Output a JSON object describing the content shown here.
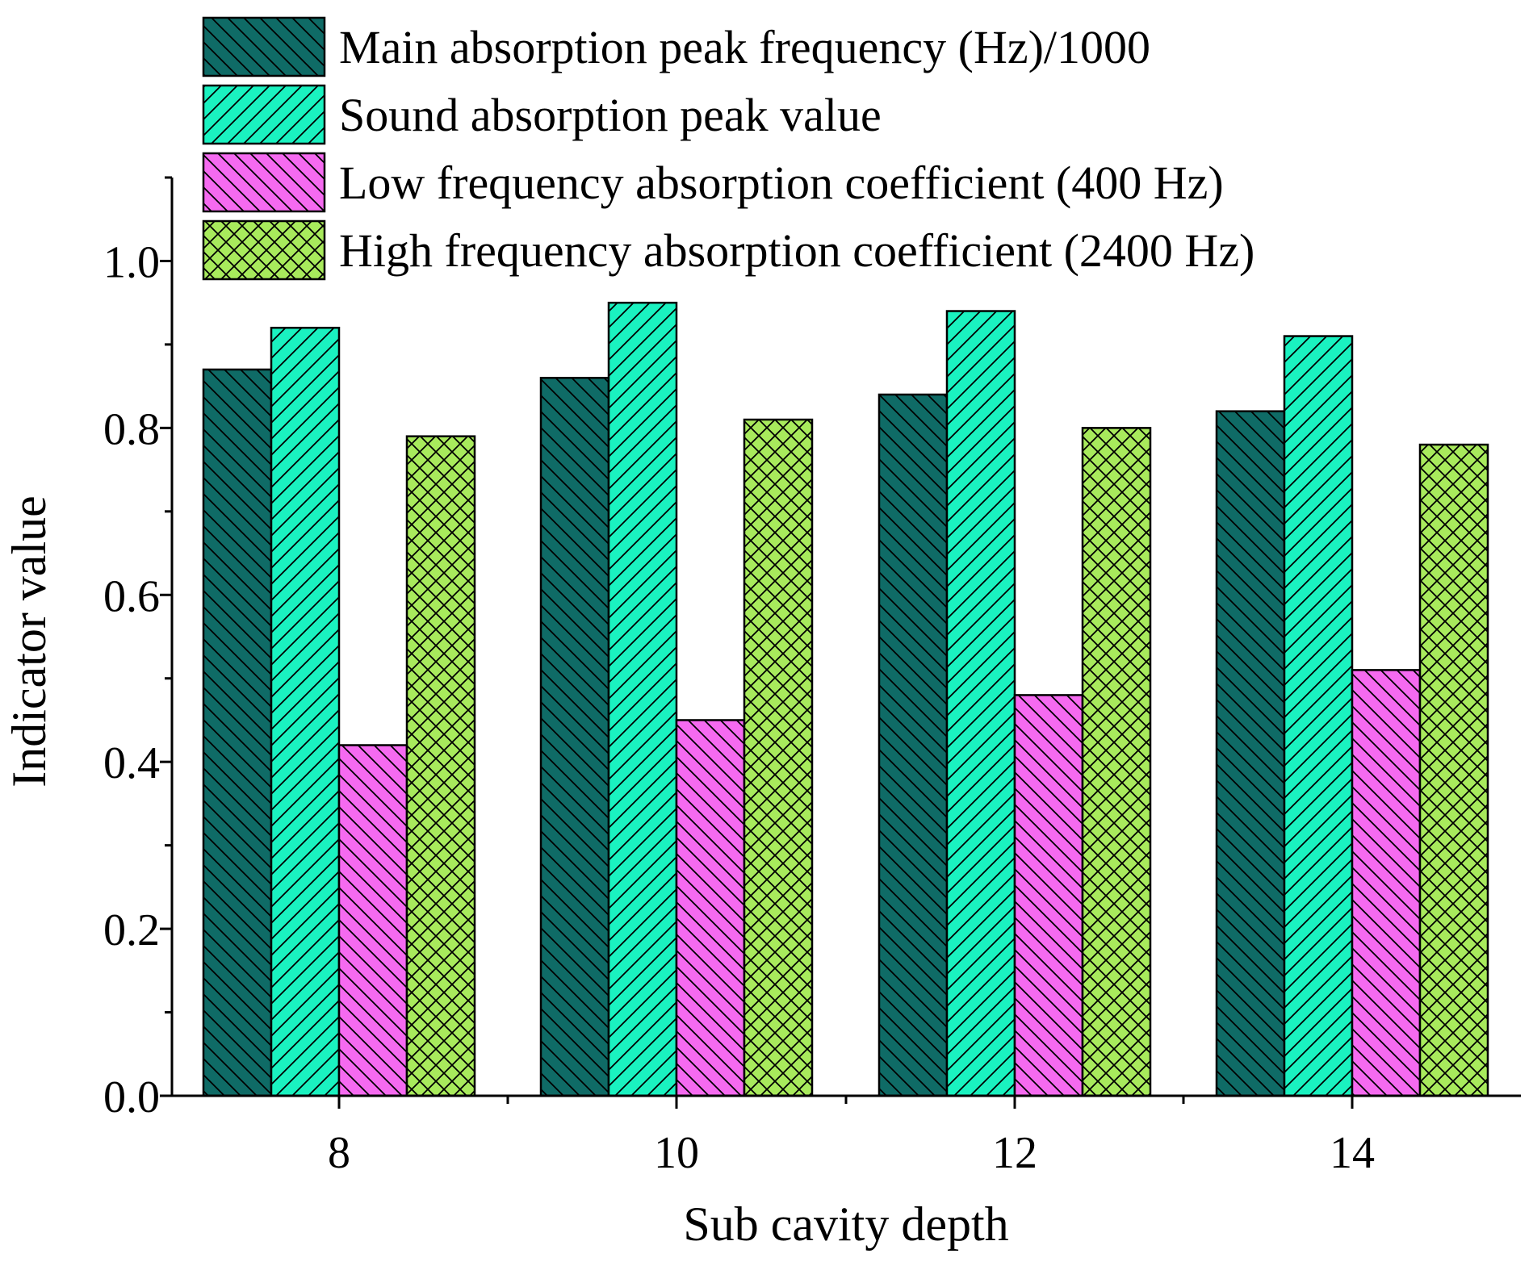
{
  "chart_data": {
    "type": "bar",
    "title": "",
    "xlabel": "Sub cavity depth",
    "ylabel": "Indicator value",
    "categories": [
      "8",
      "10",
      "12",
      "14"
    ],
    "ylim": [
      0,
      1.1
    ],
    "yticks": [
      0.0,
      0.2,
      0.4,
      0.6,
      0.8,
      1.0
    ],
    "ytick_labels": [
      "0.0",
      "0.2",
      "0.4",
      "0.6",
      "0.8",
      "1.0"
    ],
    "grid": false,
    "legend_position": "top",
    "series": [
      {
        "name": "Main absorption peak frequency (Hz)/1000",
        "values": [
          0.87,
          0.86,
          0.84,
          0.82
        ],
        "color": "#0f6b66",
        "pattern": "diag-down"
      },
      {
        "name": "Sound absorption peak value",
        "values": [
          0.92,
          0.95,
          0.94,
          0.91
        ],
        "color": "#1af2c0",
        "pattern": "diag-up"
      },
      {
        "name": "Low frequency absorption coefficient (400 Hz)",
        "values": [
          0.42,
          0.45,
          0.48,
          0.51
        ],
        "color": "#f56af0",
        "pattern": "diag-down"
      },
      {
        "name": "High frequency absorption coefficient (2400 Hz)",
        "values": [
          0.79,
          0.81,
          0.8,
          0.78
        ],
        "color": "#a8ea5c",
        "pattern": "cross"
      }
    ]
  }
}
